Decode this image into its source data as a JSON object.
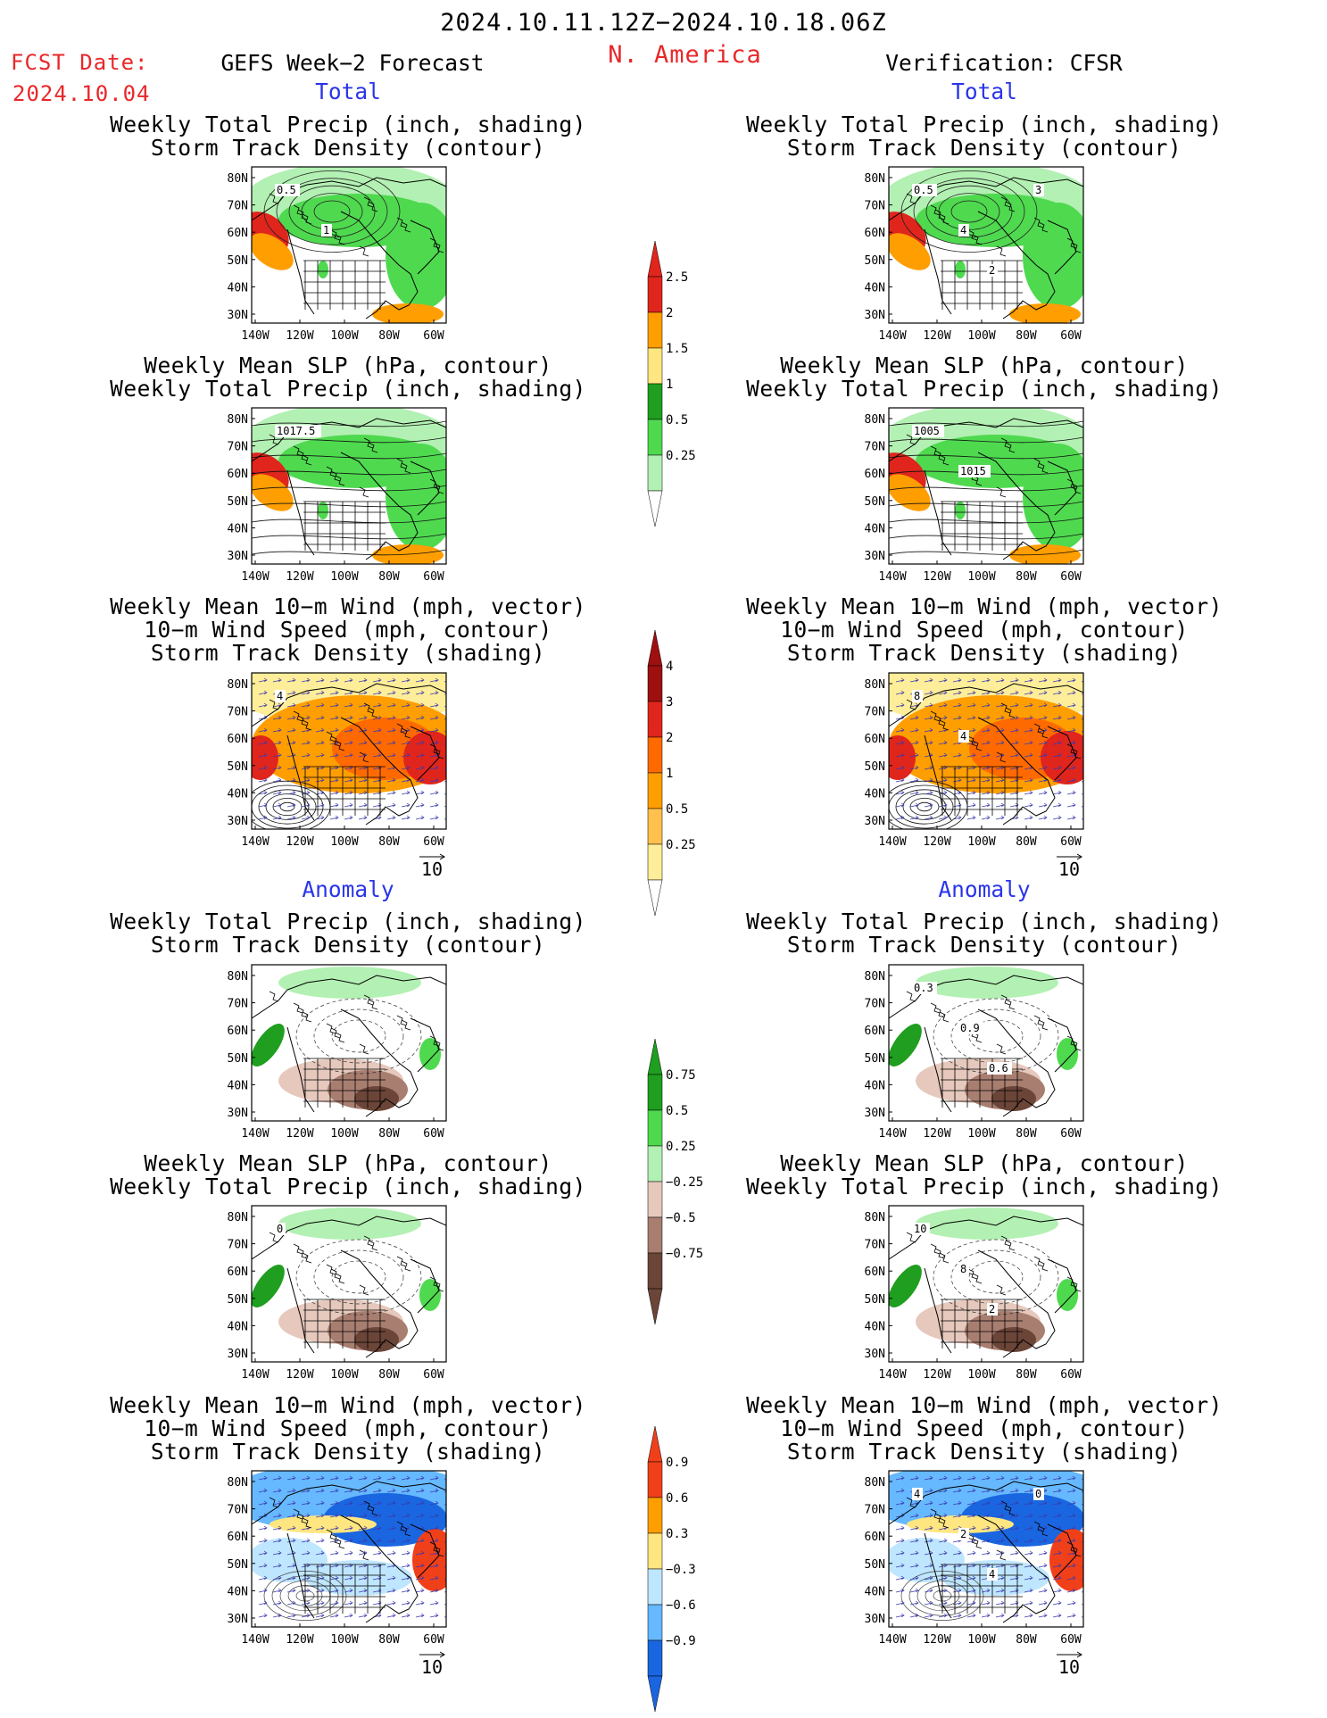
{
  "header": {
    "period": "2024.10.11.12Z−2024.10.18.06Z",
    "region": "N. America",
    "fcst_label": "FCST Date:",
    "fcst_date": "2024.10.04",
    "left_model": "GEFS Week−2 Forecast",
    "right_model": "Verification: CFSR"
  },
  "sections": {
    "total": "Total",
    "anomaly": "Anomaly"
  },
  "titles": {
    "precip_storm": [
      "Weekly Total Precip (inch, shading)",
      "Storm Track Density (contour)"
    ],
    "slp_precip": [
      "Weekly Mean SLP (hPa, contour)",
      "Weekly Total Precip (inch, shading)"
    ],
    "wind_storm": [
      "Weekly Mean 10−m Wind (mph, vector)",
      "10−m Wind Speed (mph, contour)",
      "Storm Track Density (shading)"
    ]
  },
  "axes": {
    "lat_labels": [
      "80N",
      "70N",
      "60N",
      "50N",
      "40N",
      "30N"
    ],
    "lon_labels": [
      "140W",
      "120W",
      "100W",
      "80W",
      "60W"
    ]
  },
  "vector_ref": "10",
  "colorbars": {
    "precip_total": {
      "labels": [
        "2.5",
        "2",
        "1.5",
        "1",
        "0.5",
        "0.25"
      ],
      "colors": [
        "#e0251c",
        "#ff9e00",
        "#ffe680",
        "#1f9e1f",
        "#4fd94f",
        "#b3f0b3"
      ]
    },
    "storm_total": {
      "labels": [
        "4",
        "3",
        "2",
        "1",
        "0.5",
        "0.25"
      ],
      "colors": [
        "#9e1010",
        "#e0251c",
        "#ff6a00",
        "#ff9e00",
        "#ffc04d",
        "#ffee99"
      ]
    },
    "precip_anom": {
      "labels": [
        "0.75",
        "0.5",
        "0.25",
        "−0.25",
        "−0.5",
        "−0.75"
      ],
      "colors": [
        "#1f9e1f",
        "#4fd94f",
        "#b3f0b3",
        "#e6c8bc",
        "#a87e70",
        "#6b4538"
      ]
    },
    "storm_anom": {
      "labels": [
        "0.9",
        "0.6",
        "0.3",
        "−0.3",
        "−0.6",
        "−0.9"
      ],
      "colors": [
        "#f0401a",
        "#ff9e00",
        "#ffe680",
        "#bfe6ff",
        "#66b8ff",
        "#1a66e0"
      ]
    }
  },
  "contour_labels": {
    "gefs_precip_storm": [
      "0.5",
      "1"
    ],
    "cfsr_precip_storm": [
      "0.5",
      "4",
      "2",
      "3"
    ],
    "gefs_slp": [
      "1017.5"
    ],
    "cfsr_slp": [
      "1005",
      "1015"
    ],
    "gefs_wind": [
      "4"
    ],
    "cfsr_wind": [
      "8",
      "4"
    ],
    "cfsr_precip_storm_anom": [
      "0.3",
      "0.9",
      "0.6"
    ],
    "gefs_slp_anom": [
      "0"
    ],
    "cfsr_slp_anom": [
      "10",
      "8",
      "2"
    ],
    "cfsr_wind_anom": [
      "4",
      "2",
      "4",
      "0"
    ]
  }
}
